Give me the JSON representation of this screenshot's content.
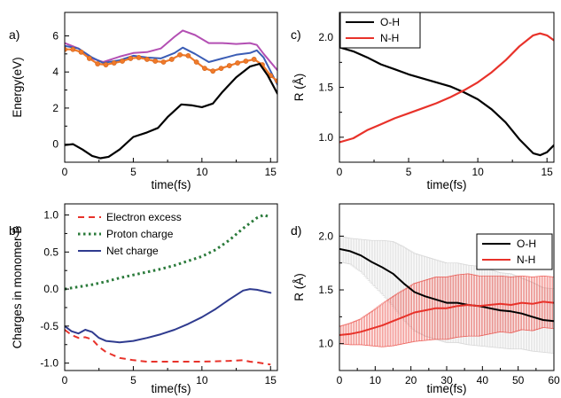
{
  "chart_data": [
    {
      "panel": "a)",
      "type": "line",
      "xlabel": "time(fs)",
      "ylabel": "Energy(eV)",
      "xlim": [
        0,
        15.5
      ],
      "ylim": [
        -1,
        7.3
      ],
      "xticks": [
        0,
        5,
        10,
        15
      ],
      "yticks": [
        0,
        2,
        4,
        6
      ],
      "series": [
        {
          "color": "#b34fb3",
          "width": 2,
          "points": [
            [
              0,
              5.6
            ],
            [
              1,
              5.3
            ],
            [
              2,
              4.75
            ],
            [
              2.8,
              4.55
            ],
            [
              4,
              4.85
            ],
            [
              5,
              5.05
            ],
            [
              6,
              5.1
            ],
            [
              7,
              5.3
            ],
            [
              8,
              5.95
            ],
            [
              8.6,
              6.3
            ],
            [
              9.5,
              6.05
            ],
            [
              10.5,
              5.6
            ],
            [
              11.5,
              5.6
            ],
            [
              12.5,
              5.55
            ],
            [
              13.5,
              5.6
            ],
            [
              14,
              5.5
            ],
            [
              14.5,
              5.0
            ],
            [
              15.5,
              4.1
            ]
          ]
        },
        {
          "color": "#3b5db5",
          "width": 2,
          "points": [
            [
              0,
              5.45
            ],
            [
              1,
              5.3
            ],
            [
              2,
              4.8
            ],
            [
              2.8,
              4.5
            ],
            [
              4,
              4.65
            ],
            [
              5,
              4.9
            ],
            [
              6,
              4.8
            ],
            [
              7,
              4.75
            ],
            [
              8,
              5.05
            ],
            [
              8.6,
              5.35
            ],
            [
              9.5,
              5.0
            ],
            [
              10.5,
              4.55
            ],
            [
              11.5,
              4.75
            ],
            [
              12.5,
              4.95
            ],
            [
              13.5,
              5.05
            ],
            [
              14,
              5.2
            ],
            [
              14.5,
              4.8
            ],
            [
              15.5,
              3.3
            ]
          ]
        },
        {
          "color": "#f07a2a",
          "width": 2.2,
          "markers": true,
          "points": [
            [
              0,
              5.25
            ],
            [
              0.6,
              5.25
            ],
            [
              1.2,
              5.1
            ],
            [
              1.8,
              4.75
            ],
            [
              2.4,
              4.45
            ],
            [
              3.0,
              4.4
            ],
            [
              3.6,
              4.5
            ],
            [
              4.2,
              4.6
            ],
            [
              4.8,
              4.75
            ],
            [
              5.4,
              4.8
            ],
            [
              6.0,
              4.7
            ],
            [
              6.6,
              4.6
            ],
            [
              7.2,
              4.55
            ],
            [
              7.8,
              4.7
            ],
            [
              8.4,
              4.95
            ],
            [
              9.0,
              4.9
            ],
            [
              9.6,
              4.55
            ],
            [
              10.2,
              4.2
            ],
            [
              10.8,
              4.05
            ],
            [
              11.4,
              4.2
            ],
            [
              12.0,
              4.35
            ],
            [
              12.6,
              4.5
            ],
            [
              13.2,
              4.6
            ],
            [
              13.8,
              4.7
            ],
            [
              14.4,
              4.4
            ],
            [
              15.0,
              3.8
            ],
            [
              15.5,
              3.5
            ]
          ]
        },
        {
          "color": "#000000",
          "width": 2.2,
          "points": [
            [
              0,
              -0.05
            ],
            [
              0.6,
              0
            ],
            [
              1.3,
              -0.3
            ],
            [
              2.0,
              -0.65
            ],
            [
              2.6,
              -0.78
            ],
            [
              3.2,
              -0.7
            ],
            [
              4,
              -0.3
            ],
            [
              5,
              0.4
            ],
            [
              6,
              0.65
            ],
            [
              6.8,
              0.9
            ],
            [
              7.5,
              1.5
            ],
            [
              8.5,
              2.2
            ],
            [
              9.3,
              2.15
            ],
            [
              10,
              2.05
            ],
            [
              10.8,
              2.25
            ],
            [
              11.5,
              2.9
            ],
            [
              12.5,
              3.7
            ],
            [
              13.5,
              4.3
            ],
            [
              14.2,
              4.45
            ],
            [
              14.8,
              3.8
            ],
            [
              15.5,
              2.8
            ]
          ]
        }
      ]
    },
    {
      "panel": "b)",
      "type": "line",
      "xlabel": "time(fs)",
      "ylabel": "Charges in monomer B",
      "xlim": [
        0,
        15.5
      ],
      "ylim": [
        -1.1,
        1.15
      ],
      "xticks": [
        0,
        5,
        10,
        15
      ],
      "yticks": [
        -1.0,
        -0.5,
        0.0,
        0.5,
        1.0
      ],
      "ytick_labels": [
        "-1.0",
        "-0.5",
        "0.0",
        "0.5",
        "1.0"
      ],
      "legend": [
        "Electron excess",
        "Proton charge",
        "Net charge"
      ],
      "series": [
        {
          "name": "Electron excess",
          "color": "#e8322a",
          "dash": "7,5",
          "width": 2,
          "points": [
            [
              0,
              -0.55
            ],
            [
              0.5,
              -0.62
            ],
            [
              1,
              -0.66
            ],
            [
              1.5,
              -0.65
            ],
            [
              2,
              -0.68
            ],
            [
              2.5,
              -0.78
            ],
            [
              3,
              -0.85
            ],
            [
              4,
              -0.93
            ],
            [
              5,
              -0.96
            ],
            [
              6,
              -0.98
            ],
            [
              8,
              -0.98
            ],
            [
              10,
              -0.98
            ],
            [
              12,
              -0.97
            ],
            [
              13,
              -0.96
            ],
            [
              13.5,
              -0.98
            ],
            [
              14,
              -0.99
            ],
            [
              15,
              -1.02
            ]
          ]
        },
        {
          "name": "Proton charge",
          "color": "#2a7a3a",
          "dash": "2.5,3.5",
          "width": 3,
          "points": [
            [
              0,
              0.0
            ],
            [
              1,
              0.03
            ],
            [
              2,
              0.06
            ],
            [
              3,
              0.1
            ],
            [
              4,
              0.15
            ],
            [
              5,
              0.19
            ],
            [
              6,
              0.23
            ],
            [
              7,
              0.27
            ],
            [
              8,
              0.32
            ],
            [
              9,
              0.38
            ],
            [
              10,
              0.44
            ],
            [
              11,
              0.53
            ],
            [
              12,
              0.66
            ],
            [
              13,
              0.82
            ],
            [
              14,
              0.96
            ],
            [
              14.5,
              1.0
            ],
            [
              15,
              0.97
            ]
          ]
        },
        {
          "name": "Net charge",
          "color": "#2f3b8f",
          "width": 2,
          "points": [
            [
              0,
              -0.5
            ],
            [
              0.5,
              -0.57
            ],
            [
              1,
              -0.6
            ],
            [
              1.5,
              -0.55
            ],
            [
              2,
              -0.58
            ],
            [
              2.5,
              -0.66
            ],
            [
              3,
              -0.7
            ],
            [
              4,
              -0.72
            ],
            [
              5,
              -0.7
            ],
            [
              6,
              -0.66
            ],
            [
              7,
              -0.61
            ],
            [
              8,
              -0.55
            ],
            [
              9,
              -0.47
            ],
            [
              10,
              -0.38
            ],
            [
              11,
              -0.27
            ],
            [
              12,
              -0.14
            ],
            [
              13,
              -0.02
            ],
            [
              13.5,
              0.0
            ],
            [
              14,
              -0.01
            ],
            [
              15,
              -0.05
            ]
          ]
        }
      ]
    },
    {
      "panel": "c)",
      "type": "line",
      "xlabel": "time(fs)",
      "ylabel": "R (Å)",
      "xlim": [
        0,
        15.5
      ],
      "ylim": [
        0.75,
        2.25
      ],
      "xticks": [
        0,
        5,
        10,
        15
      ],
      "yticks": [
        1.0,
        1.5,
        2.0
      ],
      "ytick_labels": [
        "1.0",
        "1.5",
        "2.0"
      ],
      "legend": [
        "O-H",
        "N-H"
      ],
      "series": [
        {
          "name": "O-H",
          "color": "#000000",
          "width": 2.2,
          "points": [
            [
              0,
              1.9
            ],
            [
              1,
              1.86
            ],
            [
              2,
              1.8
            ],
            [
              3,
              1.73
            ],
            [
              4,
              1.68
            ],
            [
              5,
              1.63
            ],
            [
              6,
              1.59
            ],
            [
              7,
              1.55
            ],
            [
              8,
              1.51
            ],
            [
              9,
              1.45
            ],
            [
              10,
              1.38
            ],
            [
              11,
              1.28
            ],
            [
              12,
              1.15
            ],
            [
              13,
              0.98
            ],
            [
              14,
              0.84
            ],
            [
              14.5,
              0.82
            ],
            [
              15,
              0.85
            ],
            [
              15.5,
              0.92
            ]
          ]
        },
        {
          "name": "N-H",
          "color": "#e8322a",
          "width": 2.2,
          "points": [
            [
              0,
              0.95
            ],
            [
              1,
              0.99
            ],
            [
              2,
              1.07
            ],
            [
              3,
              1.13
            ],
            [
              4,
              1.19
            ],
            [
              5,
              1.24
            ],
            [
              6,
              1.29
            ],
            [
              7,
              1.34
            ],
            [
              8,
              1.4
            ],
            [
              9,
              1.47
            ],
            [
              10,
              1.55
            ],
            [
              11,
              1.65
            ],
            [
              12,
              1.77
            ],
            [
              13,
              1.91
            ],
            [
              14,
              2.02
            ],
            [
              14.5,
              2.04
            ],
            [
              15,
              2.02
            ],
            [
              15.5,
              1.97
            ]
          ]
        }
      ]
    },
    {
      "panel": "d)",
      "type": "line",
      "xlabel": "time(fs)",
      "ylabel": "R (Å)",
      "xlim": [
        0,
        60
      ],
      "ylim": [
        0.75,
        2.3
      ],
      "xticks": [
        0,
        10,
        20,
        30,
        40,
        50,
        60
      ],
      "yticks": [
        1.0,
        1.5,
        2.0
      ],
      "ytick_labels": [
        "1.0",
        "1.5",
        "2.0"
      ],
      "legend": [
        "O-H",
        "N-H"
      ],
      "series": [
        {
          "name": "O-H",
          "color": "#000000",
          "width": 2,
          "error_color": "#b8b8b8",
          "points": [
            [
              0,
              1.88
            ],
            [
              3,
              1.86
            ],
            [
              6,
              1.82
            ],
            [
              9,
              1.76
            ],
            [
              12,
              1.71
            ],
            [
              15,
              1.65
            ],
            [
              18,
              1.56
            ],
            [
              21,
              1.48
            ],
            [
              24,
              1.44
            ],
            [
              27,
              1.41
            ],
            [
              30,
              1.38
            ],
            [
              33,
              1.38
            ],
            [
              36,
              1.36
            ],
            [
              39,
              1.35
            ],
            [
              42,
              1.33
            ],
            [
              45,
              1.31
            ],
            [
              48,
              1.3
            ],
            [
              51,
              1.28
            ],
            [
              54,
              1.25
            ],
            [
              57,
              1.22
            ],
            [
              60,
              1.21
            ]
          ],
          "error": [
            0.12,
            0.12,
            0.15,
            0.2,
            0.25,
            0.3,
            0.34,
            0.36,
            0.37,
            0.37,
            0.37,
            0.37,
            0.37,
            0.37,
            0.36,
            0.35,
            0.35,
            0.33,
            0.32,
            0.3,
            0.3
          ]
        },
        {
          "name": "N-H",
          "color": "#e8322a",
          "width": 2,
          "error_color": "#e8322a",
          "points": [
            [
              0,
              1.08
            ],
            [
              3,
              1.09
            ],
            [
              6,
              1.11
            ],
            [
              9,
              1.14
            ],
            [
              12,
              1.17
            ],
            [
              15,
              1.21
            ],
            [
              18,
              1.25
            ],
            [
              21,
              1.29
            ],
            [
              24,
              1.31
            ],
            [
              27,
              1.33
            ],
            [
              30,
              1.33
            ],
            [
              33,
              1.35
            ],
            [
              36,
              1.36
            ],
            [
              39,
              1.35
            ],
            [
              42,
              1.36
            ],
            [
              45,
              1.37
            ],
            [
              48,
              1.36
            ],
            [
              51,
              1.38
            ],
            [
              54,
              1.37
            ],
            [
              57,
              1.39
            ],
            [
              60,
              1.38
            ]
          ],
          "error": [
            0.08,
            0.1,
            0.12,
            0.16,
            0.2,
            0.23,
            0.25,
            0.27,
            0.28,
            0.29,
            0.29,
            0.29,
            0.29,
            0.28,
            0.27,
            0.26,
            0.26,
            0.25,
            0.25,
            0.24,
            0.24
          ]
        }
      ]
    }
  ]
}
